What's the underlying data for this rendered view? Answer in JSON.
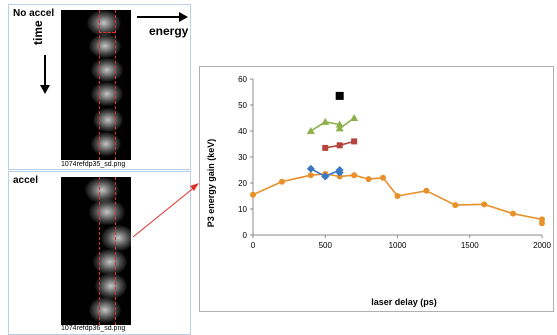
{
  "panels": {
    "top": {
      "label": "No accel",
      "filename": "1074refdp35_sd.png"
    },
    "bottom": {
      "label": "accel",
      "filename": "1074refdp36_sd.png"
    }
  },
  "annotations": {
    "energy": "energy",
    "time": "time"
  },
  "colors": {
    "orange": "#E8902A",
    "blue": "#3A78C4",
    "red": "#B5423C",
    "green": "#8DB04B",
    "black": "#000000",
    "dashed_red": "#E0302A"
  },
  "chart_data": {
    "type": "scatter",
    "title": "",
    "xlabel": "laser delay (ps)",
    "ylabel": "P3 energy gain (keV)",
    "xlim": [
      0,
      2000
    ],
    "ylim": [
      0,
      60
    ],
    "xticks": [
      0,
      500,
      1000,
      1500,
      2000
    ],
    "yticks": [
      0,
      10,
      20,
      30,
      40,
      50,
      60
    ],
    "grid": false,
    "legend": "none",
    "series": [
      {
        "marker": "circle",
        "color": "#E8902A",
        "x": [
          0,
          200,
          400,
          500,
          600,
          700,
          800,
          900,
          1000,
          1200,
          1400,
          1600,
          1800,
          2000,
          2000
        ],
        "y": [
          15.5,
          20.5,
          23,
          23.5,
          22.5,
          23,
          21.5,
          22,
          15,
          17,
          11.5,
          11.8,
          8.2,
          6,
          4.5
        ]
      },
      {
        "marker": "diamond",
        "color": "#3A78C4",
        "x": [
          400,
          500,
          600,
          600
        ],
        "y": [
          25.5,
          22.5,
          25,
          24
        ]
      },
      {
        "marker": "square",
        "color": "#B5423C",
        "x": [
          500,
          600,
          700
        ],
        "y": [
          33.5,
          34.5,
          36
        ]
      },
      {
        "marker": "triangle",
        "color": "#8DB04B",
        "x": [
          400,
          500,
          600,
          600,
          700
        ],
        "y": [
          40,
          43.5,
          42.5,
          41,
          45
        ]
      },
      {
        "marker": "square",
        "color": "#000000",
        "x": [
          600
        ],
        "y": [
          53.5
        ]
      }
    ]
  }
}
